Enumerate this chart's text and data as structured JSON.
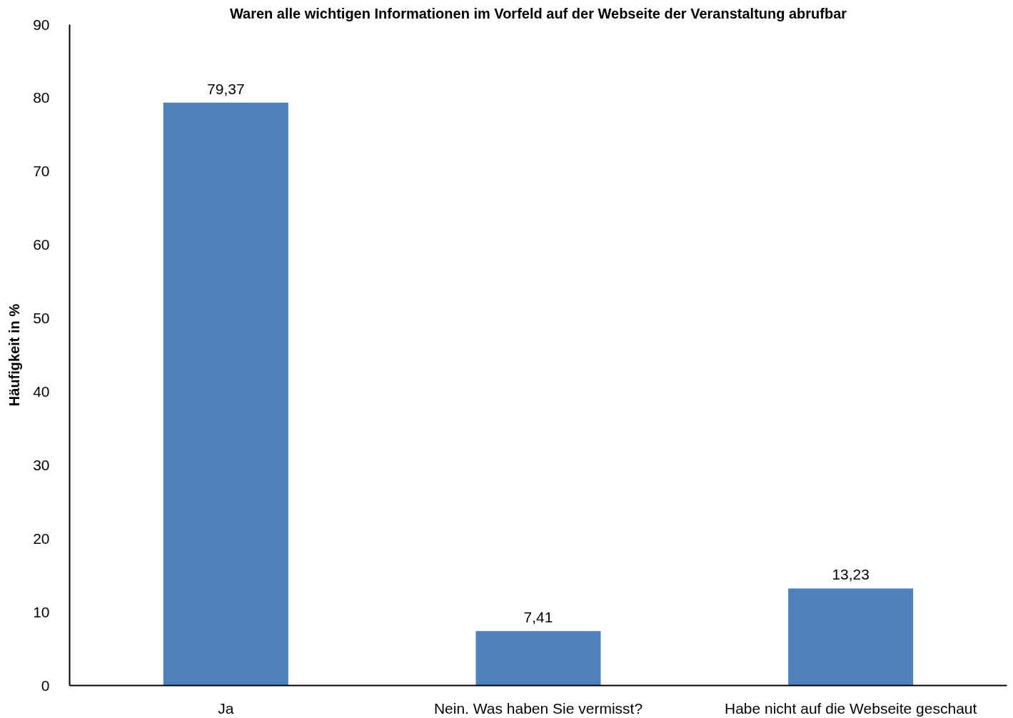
{
  "chart_data": {
    "type": "bar",
    "title": "Waren alle wichtigen Informationen im Vorfeld auf der Webseite der Veranstaltung abrufbar",
    "ylabel": "Häufigkeit in %",
    "categories": [
      "Ja",
      "Nein. Was haben Sie vermisst?",
      "Habe nicht auf die Webseite geschaut"
    ],
    "values": [
      79.37,
      7.41,
      13.23
    ],
    "color": "#4f81bd",
    "value_labels": [
      "79,37",
      "7,41",
      "13,23"
    ],
    "ylim": [
      0,
      90
    ],
    "yticks": [
      0,
      10,
      20,
      30,
      40,
      50,
      60,
      70,
      80,
      90
    ],
    "grid": false
  }
}
